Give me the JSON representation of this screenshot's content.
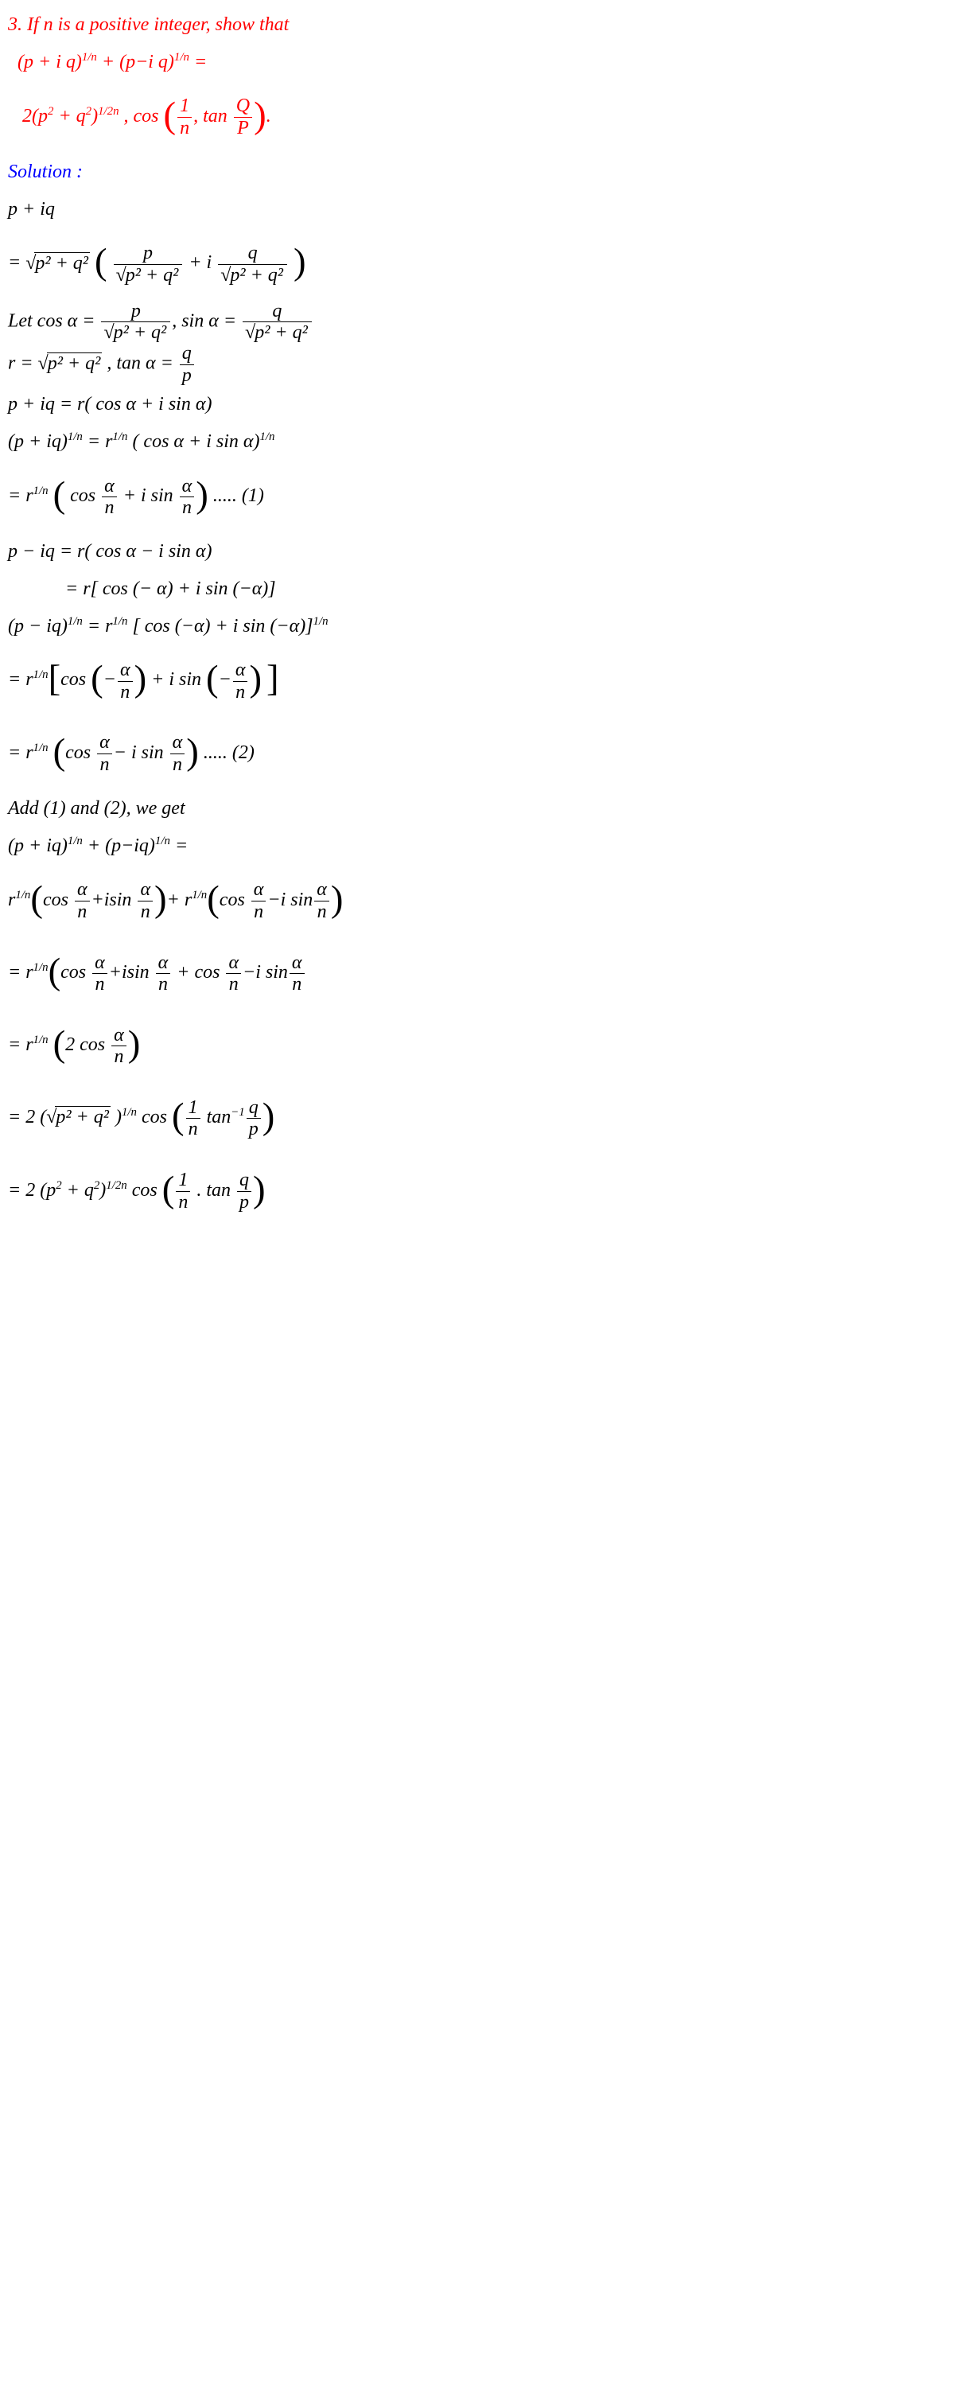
{
  "colors": {
    "red": "#ff0000",
    "blue": "#0000ff",
    "black": "#000000",
    "bg": "#ffffff"
  },
  "typography": {
    "font_family": "serif-italic",
    "font_size_pt": 24,
    "line_height": 1.95
  },
  "content": {
    "l01": "3. If n is a positive integer, show that",
    "l02a": "(p + i q)",
    "l02a_sup": "1/n",
    "l02b": " + (p−i q)",
    "l02b_sup": "1/n",
    "l02c": " =",
    "l03a": "2(p",
    "l03a_sup": "2",
    "l03b": " + q",
    "l03b_sup": "2",
    "l03c": ")",
    "l03c_sup": "1/2n",
    "l03d": " , cos ",
    "l03_f1n": "1",
    "l03_f1d": "n",
    "l03e": ", tan ",
    "l03_f2n": "Q",
    "l03_f2d": "P",
    "l03f": ".",
    "l04": "Solution :",
    "l05": "p + iq",
    "l06a": "= ",
    "l06_sq": "p² + q²",
    "l06_f1n": "p",
    "l06_f1d_sq": "p² + q²",
    "l06b": " + i ",
    "l06_f2n": "q",
    "l06_f2d_sq": "p² + q²",
    "l07a": "Let  cos α = ",
    "l07_f1n": "p",
    "l07_f1d_sq": "p² + q²",
    "l07b": ", sin α = ",
    "l07_f2n": "q",
    "l07_f2d_sq": "p² + q²",
    "l08a": "r = ",
    "l08_sq": "p² + q²",
    "l08b": " , tan α = ",
    "l08_fn": "q",
    "l08_fd": "p",
    "l09": "p + iq = r( cos α + i sin α)",
    "l10a": "(p + iq)",
    "l10a_sup": "1/n",
    "l10b": " = r",
    "l10b_sup": "1/n",
    "l10c": " ( cos α + i sin α)",
    "l10c_sup": "1/n",
    "l11a": "= r",
    "l11a_sup": "1/n",
    "l11b": " ",
    "l11c": " cos ",
    "l11_f1n": "α",
    "l11_f1d": "n",
    "l11d": " + i sin ",
    "l11_f2n": "α",
    "l11_f2d": "n",
    "l11e": " ..... (1)",
    "l12": "p − iq = r( cos α − i sin α)",
    "l13": "            = r[ cos (− α) + i sin (−α)]",
    "l14a": "(p − iq)",
    "l14a_sup": "1/n",
    "l14b": " = r",
    "l14b_sup": "1/n",
    "l14c": " [ cos (−α) + i sin (−α)]",
    "l14c_sup": "1/n",
    "l15a": "= r",
    "l15a_sup": "1/n",
    "l15b": "cos ",
    "l15c": "−",
    "l15_f1n": "α",
    "l15_f1d": "n",
    "l15d": " + i sin ",
    "l15e": "−",
    "l15_f2n": "α",
    "l15_f2d": "n",
    "l16a": "= r",
    "l16a_sup": "1/n",
    "l16b": " ",
    "l16c": "cos ",
    "l16_f1n": "α",
    "l16_f1d": "n",
    "l16d": "− i sin ",
    "l16_f2n": "α",
    "l16_f2d": "n",
    "l16e": " ..... (2)",
    "l17": "Add (1) and (2), we get",
    "l18a": "(p + iq)",
    "l18a_sup": "1/n",
    "l18b": " + (p−iq)",
    "l18b_sup": "1/n",
    "l18c": " =",
    "l19a": "r",
    "l19a_sup": "1/n",
    "l19b": "cos ",
    "l19_f1n": "α",
    "l19_f1d": "n",
    "l19c": "+isin ",
    "l19_f2n": "α",
    "l19_f2d": "n",
    "l19d": "+ r",
    "l19d_sup": "1/n",
    "l19e": "cos ",
    "l19_f3n": "α",
    "l19_f3d": "n",
    "l19f": "−i sin",
    "l19_f4n": "α",
    "l19_f4d": "n",
    "l20a": "= r",
    "l20a_sup": "1/n",
    "l20b": "cos ",
    "l20_f1n": "α",
    "l20_f1d": "n",
    "l20c": "+isin ",
    "l20_f2n": "α",
    "l20_f2d": "n",
    "l20d": " + cos ",
    "l20_f3n": "α",
    "l20_f3d": "n",
    "l20e": "−i sin",
    "l20_f4n": "α",
    "l20_f4d": "n",
    "l21a": "= r",
    "l21a_sup": "1/n",
    "l21b": " ",
    "l21c": "2 cos ",
    "l21_fn": "α",
    "l21_fd": "n",
    "l22a": "= 2 (",
    "l22_sq": "p² + q²",
    "l22b": " )",
    "l22b_sup": "1/n",
    "l22c": " cos ",
    "l22_f1n": "1",
    "l22_f1d": "n",
    "l22d": " tan",
    "l22d_sup": "−1",
    "l22_f2n": "q",
    "l22_f2d": "p",
    "l23a": "= 2 (p",
    "l23a_sup": "2",
    "l23b": " + q",
    "l23b_sup": "2",
    "l23c": ")",
    "l23c_sup": "1/2n",
    "l23d": " cos ",
    "l23_f1n": "1",
    "l23_f1d": "n",
    "l23e": " . tan ",
    "l23_f2n": "q",
    "l23_f2d": "p"
  }
}
